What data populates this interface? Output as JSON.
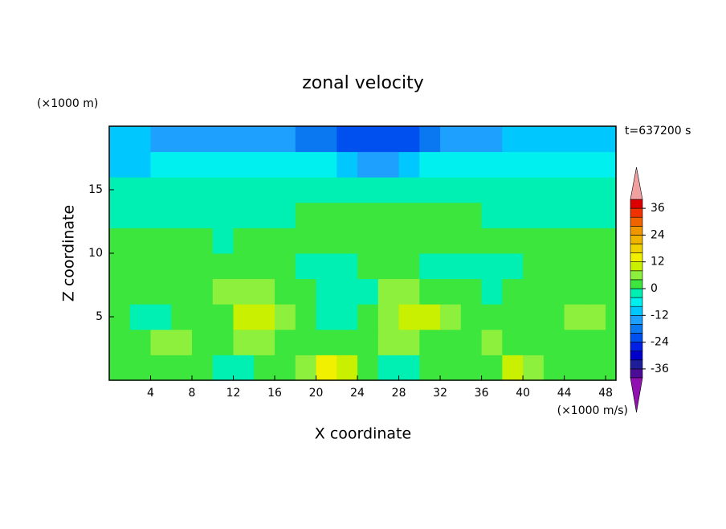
{
  "chart_data": {
    "type": "contour",
    "title": "zonal velocity",
    "y_unit_label": "(×1000 m)",
    "time_label": "t=637200 s",
    "xlabel": "X coordinate",
    "ylabel": "Z coordinate",
    "colorbar_unit_label": "(×1000 m/s)",
    "xlim": [
      0,
      49
    ],
    "ylim": [
      0,
      20
    ],
    "xticks": [
      4,
      8,
      12,
      16,
      20,
      24,
      28,
      32,
      36,
      40,
      44,
      48
    ],
    "yticks": [
      5,
      10,
      15
    ],
    "x": [
      1,
      3,
      5,
      7,
      9,
      11,
      13,
      15,
      17,
      19,
      21,
      23,
      25,
      27,
      29,
      31,
      33,
      35,
      37,
      39,
      41,
      43,
      45,
      47,
      49
    ],
    "y": [
      1,
      3,
      5,
      7,
      9,
      11,
      13,
      15,
      17,
      19
    ],
    "z": [
      [
        1,
        1,
        2,
        2,
        1,
        -2,
        -1,
        2,
        1,
        6,
        12,
        10,
        3,
        -2,
        -3,
        1,
        2,
        2,
        3,
        8,
        5,
        1,
        1,
        1,
        2
      ],
      [
        1,
        2,
        6,
        7,
        2,
        1,
        5,
        5,
        1,
        1,
        2,
        1,
        1,
        5,
        6,
        3,
        1,
        3,
        5,
        2,
        1,
        1,
        1,
        1,
        1
      ],
      [
        1,
        -2,
        -4,
        1,
        2,
        3,
        8,
        9,
        6,
        1,
        -2,
        -3,
        1,
        6,
        9,
        10,
        7,
        1,
        1,
        1,
        1,
        2,
        6,
        6,
        2
      ],
      [
        2,
        1,
        1,
        2,
        1,
        5,
        7,
        6,
        2,
        0,
        -3,
        -4,
        -2,
        4,
        6,
        3,
        1,
        0,
        -1,
        0,
        1,
        1,
        2,
        1,
        1
      ],
      [
        2,
        2,
        2,
        2,
        2,
        1,
        1,
        2,
        1,
        -1,
        -2,
        -3,
        0,
        2,
        1,
        -1,
        -2,
        -2,
        -1,
        -1,
        0,
        1,
        0,
        2,
        1
      ],
      [
        1,
        2,
        2,
        2,
        0,
        -1,
        2,
        3,
        1,
        1,
        0,
        1,
        2,
        0,
        1,
        2,
        1,
        0,
        1,
        0,
        2,
        3,
        1,
        2,
        1
      ],
      [
        -2,
        -2,
        -2,
        -2,
        -2,
        -2,
        -1,
        -2,
        -2,
        1,
        2,
        3,
        3,
        2,
        1,
        1,
        2,
        1,
        -1,
        -1,
        -1,
        -2,
        -2,
        -2,
        -2
      ],
      [
        -4,
        -3,
        -3,
        -3,
        -3,
        -3,
        -3,
        -3,
        -3,
        -3,
        -4,
        -4,
        -4,
        -4,
        -4,
        -4,
        -3,
        -3,
        -3,
        -3,
        -3,
        -3,
        -3,
        -3,
        -3
      ],
      [
        -9,
        -9,
        -7,
        -7,
        -6,
        -6,
        -6,
        -6,
        -7,
        -7,
        -8,
        -10,
        -13,
        -14,
        -10,
        -8,
        -7,
        -7,
        -7,
        -7,
        -7,
        -7,
        -7,
        -7,
        -8
      ],
      [
        -12,
        -12,
        -13,
        -13,
        -13,
        -14,
        -14,
        -15,
        -16,
        -17,
        -18,
        -22,
        -22,
        -22,
        -22,
        -18,
        -16,
        -14,
        -13,
        -12,
        -11,
        -11,
        -11,
        -10,
        -10
      ]
    ],
    "levels": [
      -40,
      -36,
      -32,
      -28,
      -24,
      -20,
      -16,
      -12,
      -8,
      -4,
      0,
      4,
      8,
      12,
      16,
      20,
      24,
      28,
      32,
      36,
      40
    ],
    "colors": [
      "#4b0c96",
      "#1e1e9a",
      "#0000c8",
      "#0020e6",
      "#0050f0",
      "#0a78f0",
      "#1ea0ff",
      "#00c8ff",
      "#00f0f0",
      "#00f0b4",
      "#3ce63c",
      "#8cf03c",
      "#c8f000",
      "#f0f000",
      "#f0d200",
      "#f0b400",
      "#f09600",
      "#f06400",
      "#f03200",
      "#dc0000"
    ],
    "under_color": "#9010b0",
    "over_color": "#f0a0a0",
    "colorbar_ticks": [
      -36,
      -24,
      -12,
      0,
      12,
      24,
      36
    ]
  }
}
